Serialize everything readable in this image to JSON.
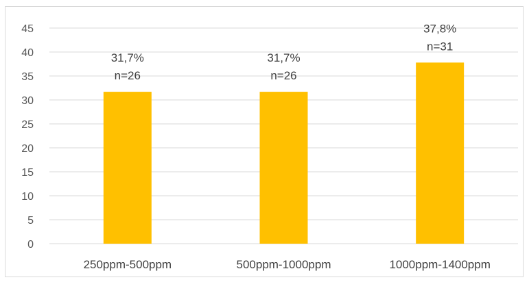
{
  "chart_data": {
    "type": "bar",
    "title": "",
    "xlabel": "",
    "ylabel": "",
    "categories": [
      "250ppm-500ppm",
      "500ppm-1000ppm",
      "1000ppm-1400ppm"
    ],
    "values": [
      31.7,
      31.7,
      37.8
    ],
    "data_labels": [
      {
        "percent": "31,7%",
        "n": "n=26"
      },
      {
        "percent": "31,7%",
        "n": "n=26"
      },
      {
        "percent": "37,8%",
        "n": "n=31"
      }
    ],
    "ylim": [
      0,
      45
    ],
    "yticks": [
      0,
      5,
      10,
      15,
      20,
      25,
      30,
      35,
      40,
      45
    ],
    "grid": true,
    "legend": "none",
    "bar_color": "#FFC000",
    "grid_color": "#d9d9d9"
  }
}
